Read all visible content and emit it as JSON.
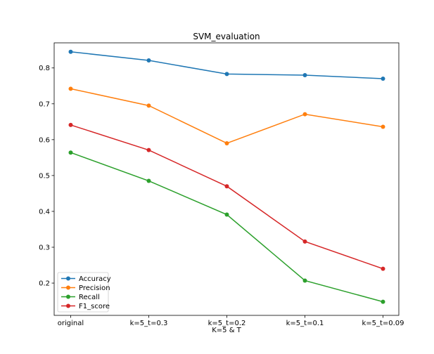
{
  "chart_data": {
    "type": "line",
    "title": "SVM_evaluation",
    "xlabel": "K=5 & T",
    "ylabel": "",
    "categories": [
      "original",
      "k=5_t=0.3",
      "k=5_t=0.2",
      "k=5_t=0.1",
      "k=5_t=0.09"
    ],
    "ylim": [
      0.11,
      0.87
    ],
    "yticks": [
      "0.2",
      "0.3",
      "0.4",
      "0.5",
      "0.6",
      "0.7",
      "0.8"
    ],
    "grid": false,
    "legend_position": "lower-left",
    "series": [
      {
        "name": "Accuracy",
        "color": "#1f77b4",
        "values": [
          0.845,
          0.821,
          0.783,
          0.78,
          0.77
        ]
      },
      {
        "name": "Precision",
        "color": "#ff7f0e",
        "values": [
          0.742,
          0.695,
          0.59,
          0.671,
          0.636
        ]
      },
      {
        "name": "Recall",
        "color": "#2ca02c",
        "values": [
          0.564,
          0.485,
          0.391,
          0.207,
          0.148
        ]
      },
      {
        "name": "F1_score",
        "color": "#d62728",
        "values": [
          0.641,
          0.571,
          0.47,
          0.316,
          0.24
        ]
      }
    ]
  }
}
